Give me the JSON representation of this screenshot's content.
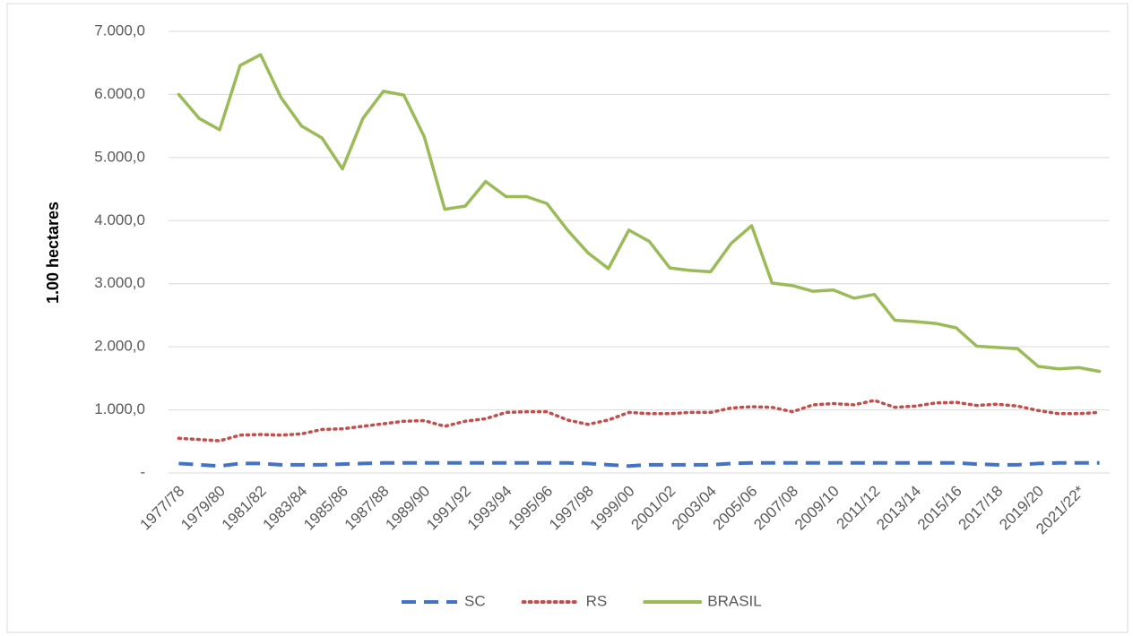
{
  "chart_data": {
    "type": "line",
    "y_label": "1.00 hectares",
    "categories": [
      "1977/78",
      null,
      "1979/80",
      null,
      "1981/82",
      null,
      "1983/84",
      null,
      "1985/86",
      null,
      "1987/88",
      null,
      "1989/90",
      null,
      "1991/92",
      null,
      "1993/94",
      null,
      "1995/96",
      null,
      "1997/98",
      null,
      "1999/00",
      null,
      "2001/02",
      null,
      "2003/04",
      null,
      "2005/06",
      null,
      "2007/08",
      null,
      "2009/10",
      null,
      "2011/12",
      null,
      "2013/14",
      null,
      "2015/16",
      null,
      "2017/18",
      null,
      "2019/20",
      null,
      "2021/22*",
      null
    ],
    "series": [
      {
        "name": "SC",
        "color": "#4472c4",
        "style": "dashed",
        "values": [
          150,
          130,
          110,
          150,
          150,
          130,
          130,
          130,
          140,
          150,
          160,
          160,
          160,
          160,
          160,
          160,
          160,
          160,
          160,
          160,
          150,
          130,
          110,
          130,
          130,
          130,
          130,
          150,
          160,
          160,
          160,
          160,
          160,
          160,
          160,
          160,
          160,
          160,
          160,
          140,
          130,
          130,
          150,
          160,
          160,
          160
        ]
      },
      {
        "name": "RS",
        "color": "#c0504d",
        "style": "dotted",
        "values": [
          550,
          530,
          510,
          600,
          610,
          600,
          620,
          690,
          700,
          740,
          780,
          820,
          830,
          740,
          820,
          860,
          960,
          970,
          970,
          840,
          770,
          840,
          960,
          940,
          940,
          960,
          960,
          1030,
          1050,
          1040,
          970,
          1080,
          1100,
          1080,
          1150,
          1040,
          1060,
          1110,
          1120,
          1070,
          1090,
          1060,
          990,
          940,
          940,
          960
        ]
      },
      {
        "name": "BRASIL",
        "color": "#9bbb59",
        "style": "solid",
        "values": [
          6000,
          5620,
          5440,
          6460,
          6630,
          5950,
          5500,
          5310,
          4820,
          5620,
          6050,
          5990,
          5330,
          4180,
          4230,
          4620,
          4380,
          4380,
          4270,
          3850,
          3490,
          3240,
          3850,
          3670,
          3250,
          3210,
          3190,
          3640,
          3920,
          3010,
          2970,
          2880,
          2900,
          2770,
          2830,
          2420,
          2400,
          2370,
          2300,
          2010,
          1990,
          1970,
          1690,
          1650,
          1670,
          1610
        ]
      }
    ],
    "ylim": [
      0,
      7000
    ],
    "yticks": [
      {
        "value": 0,
        "label": "-"
      },
      {
        "value": 1000,
        "label": "1.000,0"
      },
      {
        "value": 2000,
        "label": "2.000,0"
      },
      {
        "value": 3000,
        "label": "3.000,0"
      },
      {
        "value": 4000,
        "label": "4.000,0"
      },
      {
        "value": 5000,
        "label": "5.000,0"
      },
      {
        "value": 6000,
        "label": "6.000,0"
      },
      {
        "value": 7000,
        "label": "7.000,0"
      }
    ],
    "grid": true,
    "legend": "bottom"
  }
}
